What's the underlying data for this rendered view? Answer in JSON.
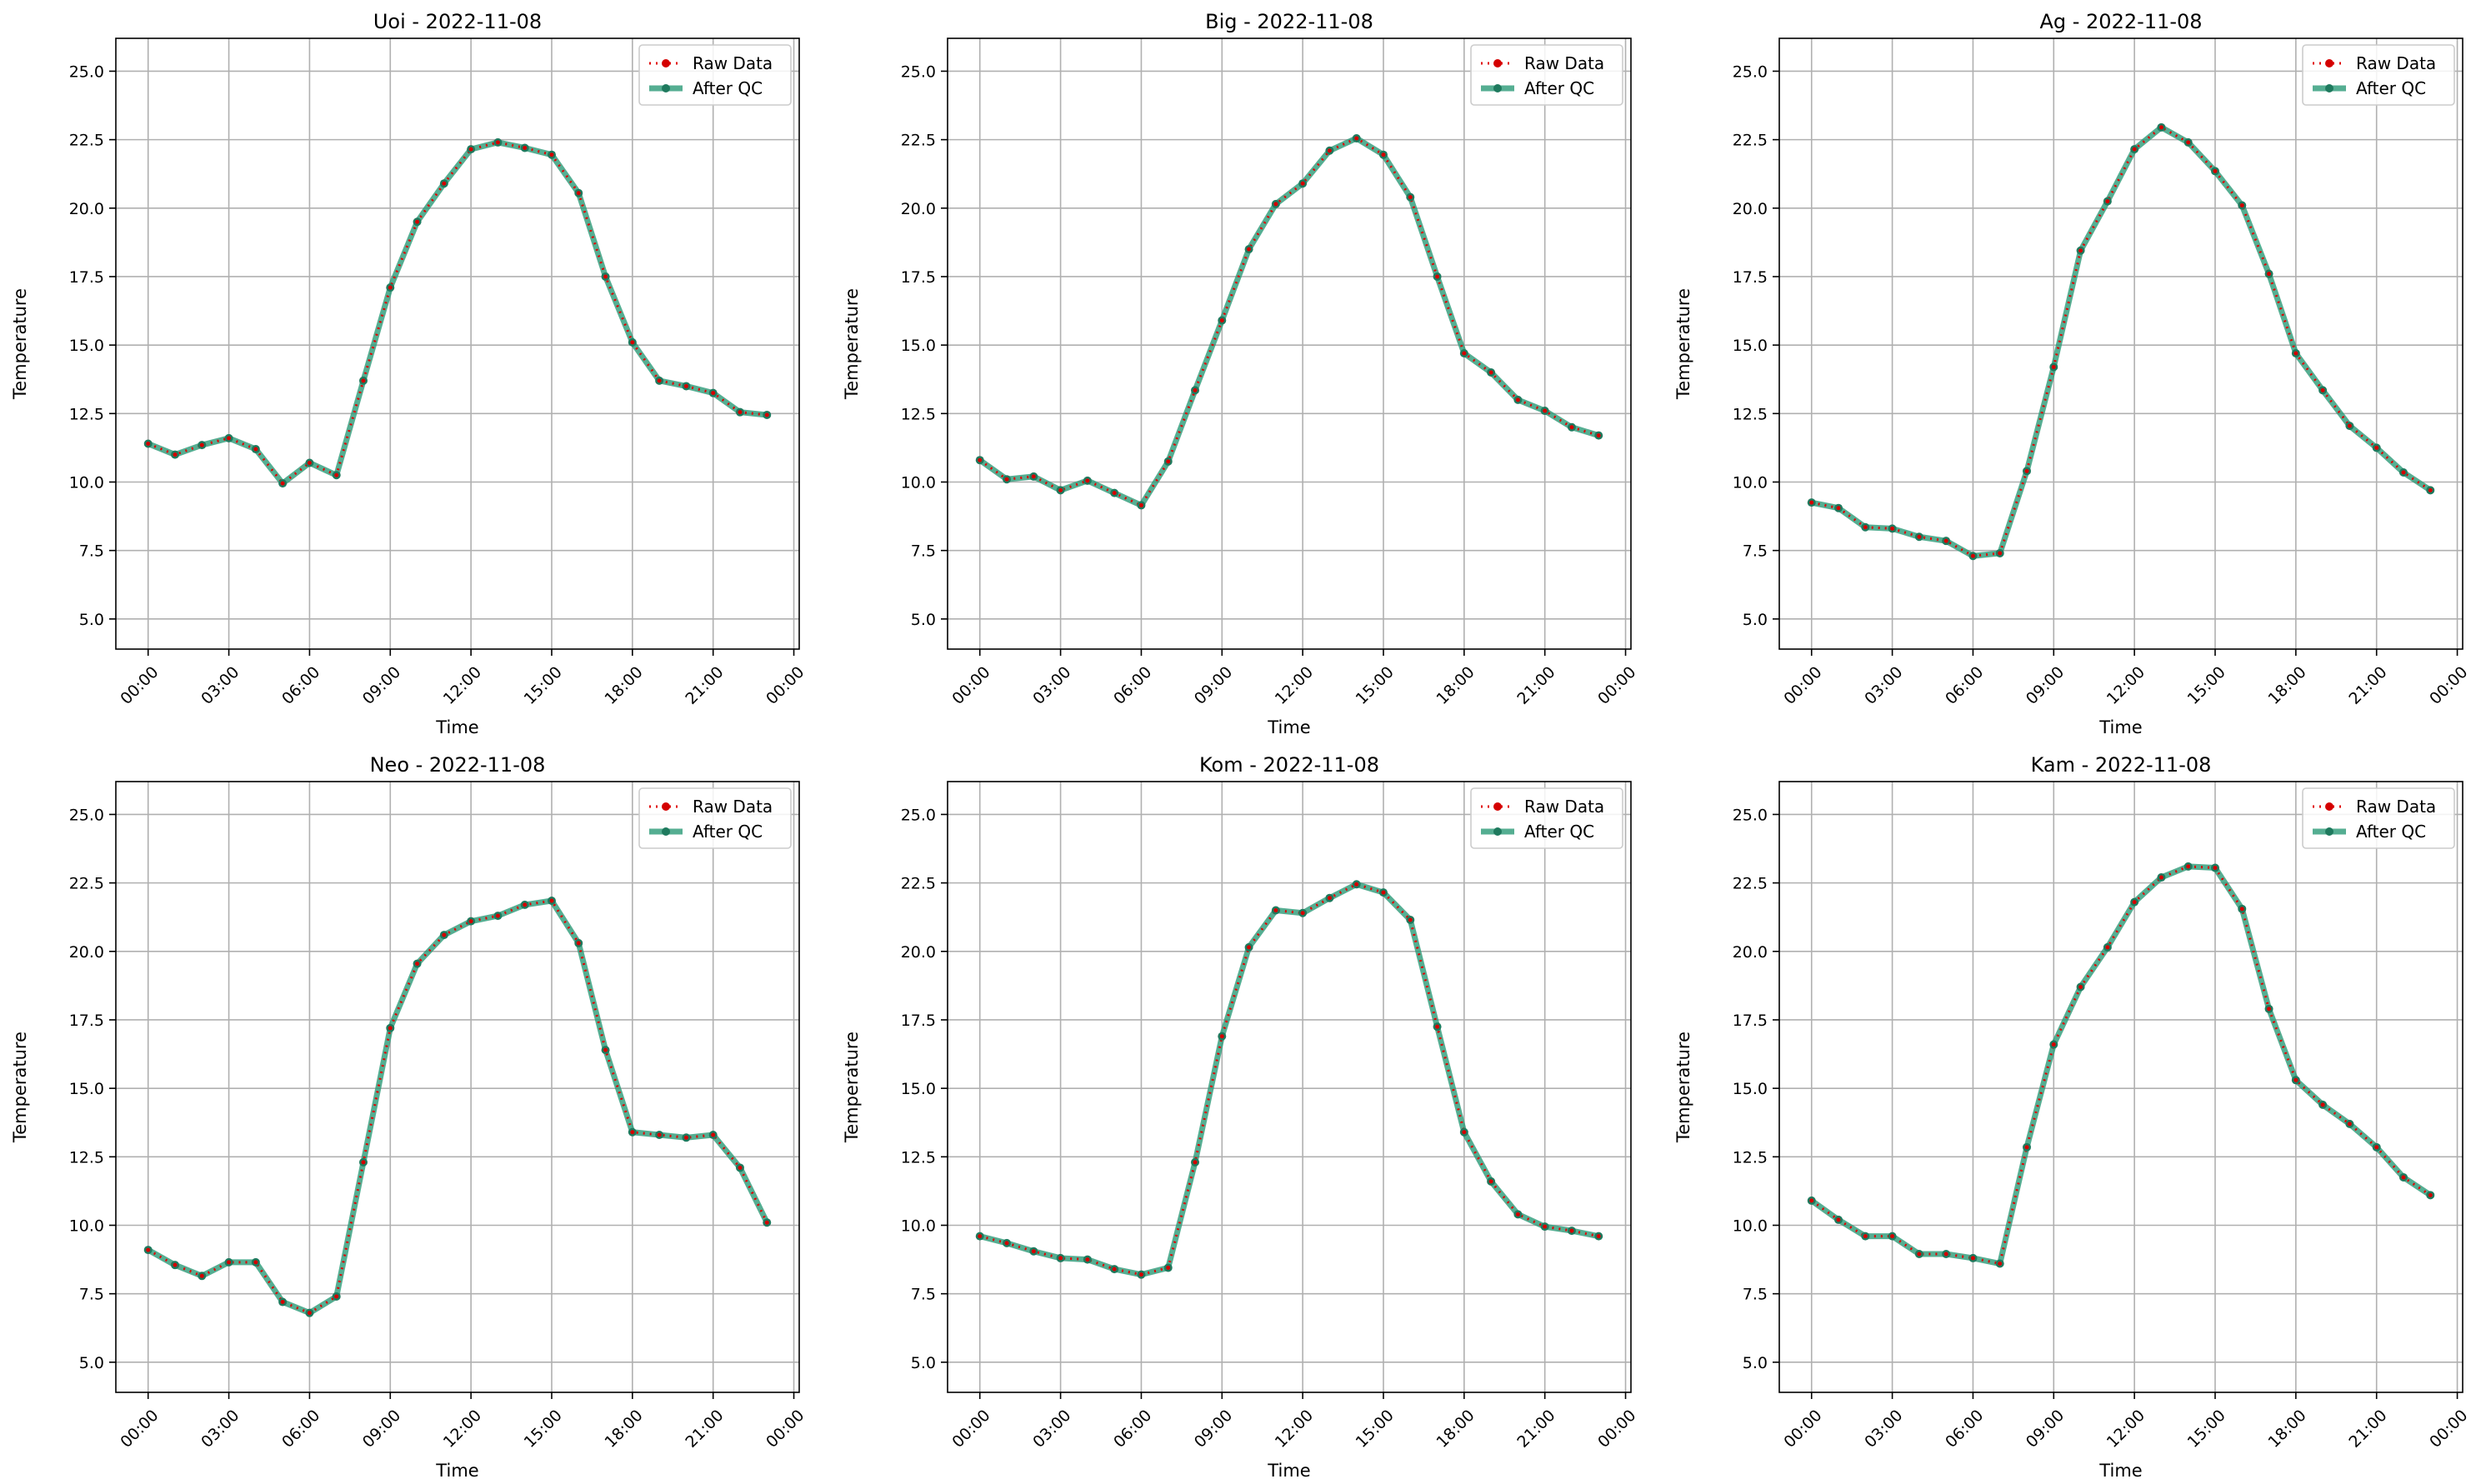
{
  "chart_data": [
    {
      "type": "line",
      "title": "Uoi - 2022-11-08",
      "xlabel": "Time",
      "ylabel": "Temperature",
      "x_tick_labels": [
        "00:00",
        "03:00",
        "06:00",
        "09:00",
        "12:00",
        "15:00",
        "18:00",
        "21:00",
        "00:00"
      ],
      "y_tick_labels": [
        "5.0",
        "7.5",
        "10.0",
        "12.5",
        "15.0",
        "17.5",
        "20.0",
        "22.5",
        "25.0"
      ],
      "ylim": [
        3.9,
        26.2
      ],
      "xlim_hours": [
        -1.2,
        24.2
      ],
      "x_hours": [
        0,
        1,
        2,
        3,
        4,
        5,
        6,
        7,
        8,
        9,
        10,
        11,
        12,
        13,
        14,
        15,
        16,
        17,
        18,
        19,
        20,
        21,
        22,
        23
      ],
      "grid": true,
      "legend_position": "top-right",
      "series": [
        {
          "name": "Raw Data",
          "values": [
            11.4,
            11.0,
            11.35,
            11.6,
            11.2,
            9.95,
            10.7,
            10.25,
            13.7,
            17.1,
            19.5,
            20.9,
            22.15,
            22.4,
            22.2,
            21.95,
            20.55,
            17.5,
            15.1,
            13.7,
            13.5,
            13.25,
            12.55,
            12.45
          ]
        },
        {
          "name": "After QC",
          "values": [
            11.4,
            11.0,
            11.35,
            11.6,
            11.2,
            9.95,
            10.7,
            10.25,
            13.7,
            17.1,
            19.5,
            20.9,
            22.15,
            22.4,
            22.2,
            21.95,
            20.55,
            17.5,
            15.1,
            13.7,
            13.5,
            13.25,
            12.55,
            12.45
          ]
        }
      ]
    },
    {
      "type": "line",
      "title": "Big - 2022-11-08",
      "xlabel": "Time",
      "ylabel": "Temperature",
      "x_tick_labels": [
        "00:00",
        "03:00",
        "06:00",
        "09:00",
        "12:00",
        "15:00",
        "18:00",
        "21:00",
        "00:00"
      ],
      "y_tick_labels": [
        "5.0",
        "7.5",
        "10.0",
        "12.5",
        "15.0",
        "17.5",
        "20.0",
        "22.5",
        "25.0"
      ],
      "ylim": [
        3.9,
        26.2
      ],
      "xlim_hours": [
        -1.2,
        24.2
      ],
      "x_hours": [
        0,
        1,
        2,
        3,
        4,
        5,
        6,
        7,
        8,
        9,
        10,
        11,
        12,
        13,
        14,
        15,
        16,
        17,
        18,
        19,
        20,
        21,
        22,
        23
      ],
      "grid": true,
      "legend_position": "top-right",
      "series": [
        {
          "name": "Raw Data",
          "values": [
            10.8,
            10.1,
            10.2,
            9.7,
            10.05,
            9.6,
            9.15,
            10.75,
            13.35,
            15.9,
            18.5,
            20.15,
            20.9,
            22.1,
            22.55,
            21.95,
            20.4,
            17.5,
            14.7,
            14.0,
            13.0,
            12.6,
            12.0,
            11.7
          ]
        },
        {
          "name": "After QC",
          "values": [
            10.8,
            10.1,
            10.2,
            9.7,
            10.05,
            9.6,
            9.15,
            10.75,
            13.35,
            15.9,
            18.5,
            20.15,
            20.9,
            22.1,
            22.55,
            21.95,
            20.4,
            17.5,
            14.7,
            14.0,
            13.0,
            12.6,
            12.0,
            11.7
          ]
        }
      ]
    },
    {
      "type": "line",
      "title": "Ag - 2022-11-08",
      "xlabel": "Time",
      "ylabel": "Temperature",
      "x_tick_labels": [
        "00:00",
        "03:00",
        "06:00",
        "09:00",
        "12:00",
        "15:00",
        "18:00",
        "21:00",
        "00:00"
      ],
      "y_tick_labels": [
        "5.0",
        "7.5",
        "10.0",
        "12.5",
        "15.0",
        "17.5",
        "20.0",
        "22.5",
        "25.0"
      ],
      "ylim": [
        3.9,
        26.2
      ],
      "xlim_hours": [
        -1.2,
        24.2
      ],
      "x_hours": [
        0,
        1,
        2,
        3,
        4,
        5,
        6,
        7,
        8,
        9,
        10,
        11,
        12,
        13,
        14,
        15,
        16,
        17,
        18,
        19,
        20,
        21,
        22,
        23
      ],
      "grid": true,
      "legend_position": "top-right",
      "series": [
        {
          "name": "Raw Data",
          "values": [
            9.25,
            9.05,
            8.35,
            8.3,
            8.0,
            7.85,
            7.3,
            7.4,
            10.4,
            14.2,
            18.45,
            20.25,
            22.15,
            22.95,
            22.4,
            21.35,
            20.1,
            17.6,
            14.7,
            13.35,
            12.05,
            11.25,
            10.35,
            9.7
          ]
        },
        {
          "name": "After QC",
          "values": [
            9.25,
            9.05,
            8.35,
            8.3,
            8.0,
            7.85,
            7.3,
            7.4,
            10.4,
            14.2,
            18.45,
            20.25,
            22.15,
            22.95,
            22.4,
            21.35,
            20.1,
            17.6,
            14.7,
            13.35,
            12.05,
            11.25,
            10.35,
            9.7
          ]
        }
      ]
    },
    {
      "type": "line",
      "title": "Neo - 2022-11-08",
      "xlabel": "Time",
      "ylabel": "Temperature",
      "x_tick_labels": [
        "00:00",
        "03:00",
        "06:00",
        "09:00",
        "12:00",
        "15:00",
        "18:00",
        "21:00",
        "00:00"
      ],
      "y_tick_labels": [
        "5.0",
        "7.5",
        "10.0",
        "12.5",
        "15.0",
        "17.5",
        "20.0",
        "22.5",
        "25.0"
      ],
      "ylim": [
        3.9,
        26.2
      ],
      "xlim_hours": [
        -1.2,
        24.2
      ],
      "x_hours": [
        0,
        1,
        2,
        3,
        4,
        5,
        6,
        7,
        8,
        9,
        10,
        11,
        12,
        13,
        14,
        15,
        16,
        17,
        18,
        19,
        20,
        21,
        22,
        23
      ],
      "grid": true,
      "legend_position": "top-right",
      "series": [
        {
          "name": "Raw Data",
          "values": [
            9.1,
            8.55,
            8.15,
            8.65,
            8.65,
            7.2,
            6.8,
            7.4,
            12.3,
            17.2,
            19.55,
            20.6,
            21.1,
            21.3,
            21.7,
            21.85,
            20.3,
            16.4,
            13.4,
            13.3,
            13.2,
            13.3,
            12.1,
            10.1
          ]
        },
        {
          "name": "After QC",
          "values": [
            9.1,
            8.55,
            8.15,
            8.65,
            8.65,
            7.2,
            6.8,
            7.4,
            12.3,
            17.2,
            19.55,
            20.6,
            21.1,
            21.3,
            21.7,
            21.85,
            20.3,
            16.4,
            13.4,
            13.3,
            13.2,
            13.3,
            12.1,
            10.1
          ]
        }
      ]
    },
    {
      "type": "line",
      "title": "Kom - 2022-11-08",
      "xlabel": "Time",
      "ylabel": "Temperature",
      "x_tick_labels": [
        "00:00",
        "03:00",
        "06:00",
        "09:00",
        "12:00",
        "15:00",
        "18:00",
        "21:00",
        "00:00"
      ],
      "y_tick_labels": [
        "5.0",
        "7.5",
        "10.0",
        "12.5",
        "15.0",
        "17.5",
        "20.0",
        "22.5",
        "25.0"
      ],
      "ylim": [
        3.9,
        26.2
      ],
      "xlim_hours": [
        -1.2,
        24.2
      ],
      "x_hours": [
        0,
        1,
        2,
        3,
        4,
        5,
        6,
        7,
        8,
        9,
        10,
        11,
        12,
        13,
        14,
        15,
        16,
        17,
        18,
        19,
        20,
        21,
        22,
        23
      ],
      "grid": true,
      "legend_position": "top-right",
      "series": [
        {
          "name": "Raw Data",
          "values": [
            9.6,
            9.35,
            9.05,
            8.8,
            8.75,
            8.4,
            8.2,
            8.45,
            12.3,
            16.9,
            20.15,
            21.5,
            21.4,
            21.95,
            22.45,
            22.15,
            21.15,
            17.25,
            13.4,
            11.6,
            10.4,
            9.95,
            9.8,
            9.6
          ]
        },
        {
          "name": "After QC",
          "values": [
            9.6,
            9.35,
            9.05,
            8.8,
            8.75,
            8.4,
            8.2,
            8.45,
            12.3,
            16.9,
            20.15,
            21.5,
            21.4,
            21.95,
            22.45,
            22.15,
            21.15,
            17.25,
            13.4,
            11.6,
            10.4,
            9.95,
            9.8,
            9.6
          ]
        }
      ]
    },
    {
      "type": "line",
      "title": "Kam - 2022-11-08",
      "xlabel": "Time",
      "ylabel": "Temperature",
      "x_tick_labels": [
        "00:00",
        "03:00",
        "06:00",
        "09:00",
        "12:00",
        "15:00",
        "18:00",
        "21:00",
        "00:00"
      ],
      "y_tick_labels": [
        "5.0",
        "7.5",
        "10.0",
        "12.5",
        "15.0",
        "17.5",
        "20.0",
        "22.5",
        "25.0"
      ],
      "ylim": [
        3.9,
        26.2
      ],
      "xlim_hours": [
        -1.2,
        24.2
      ],
      "x_hours": [
        0,
        1,
        2,
        3,
        4,
        5,
        6,
        7,
        8,
        9,
        10,
        11,
        12,
        13,
        14,
        15,
        16,
        17,
        18,
        19,
        20,
        21,
        22,
        23
      ],
      "grid": true,
      "legend_position": "top-right",
      "series": [
        {
          "name": "Raw Data",
          "values": [
            10.9,
            10.2,
            9.6,
            9.6,
            8.95,
            8.95,
            8.8,
            8.6,
            12.85,
            16.6,
            18.7,
            20.15,
            21.8,
            22.7,
            23.1,
            23.05,
            21.55,
            17.9,
            15.3,
            14.4,
            13.7,
            12.85,
            11.75,
            11.1
          ]
        },
        {
          "name": "After QC",
          "values": [
            10.9,
            10.2,
            9.6,
            9.6,
            8.95,
            8.95,
            8.8,
            8.6,
            12.85,
            16.6,
            18.7,
            20.15,
            21.8,
            22.7,
            23.1,
            23.05,
            21.55,
            17.9,
            15.3,
            14.4,
            13.7,
            12.85,
            11.75,
            11.1
          ]
        }
      ]
    }
  ]
}
